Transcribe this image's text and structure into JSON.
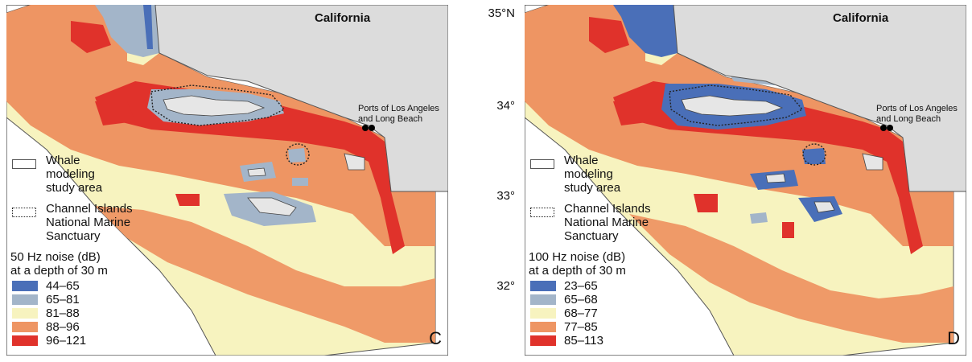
{
  "panels": [
    {
      "id": "C",
      "letter": "C",
      "state_label": "California",
      "ports_label_line1": "Ports of Los Angeles",
      "ports_label_line2": "and Long Beach",
      "legend_study_area_1": "Whale",
      "legend_study_area_2": "modeling",
      "legend_study_area_3": "study area",
      "legend_sanctuary_1": "Channel Islands",
      "legend_sanctuary_2": "National Marine",
      "legend_sanctuary_3": "Sanctuary",
      "noise_title_1": "50 Hz noise (dB)",
      "noise_title_2": "at a depth of 30 m",
      "classes": [
        {
          "label": "44–65",
          "color": "#4a6fb8"
        },
        {
          "label": "65–81",
          "color": "#a3b5c9"
        },
        {
          "label": "81–88",
          "color": "#f7f3bf"
        },
        {
          "label": "88–96",
          "color": "#ee9563"
        },
        {
          "label": "96–121",
          "color": "#e0322b"
        }
      ]
    },
    {
      "id": "D",
      "letter": "D",
      "state_label": "California",
      "ports_label_line1": "Ports of Los Angeles",
      "ports_label_line2": "and Long Beach",
      "legend_study_area_1": "Whale",
      "legend_study_area_2": "modeling",
      "legend_study_area_3": "study area",
      "legend_sanctuary_1": "Channel Islands",
      "legend_sanctuary_2": "National Marine",
      "legend_sanctuary_3": "Sanctuary",
      "noise_title_1": "100 Hz noise (dB)",
      "noise_title_2": "at a depth of 30 m",
      "classes": [
        {
          "label": "23–65",
          "color": "#4a6fb8"
        },
        {
          "label": "65–68",
          "color": "#a3b5c9"
        },
        {
          "label": "68–77",
          "color": "#f7f3bf"
        },
        {
          "label": "77–85",
          "color": "#ee9563"
        },
        {
          "label": "85–113",
          "color": "#e0322b"
        }
      ]
    }
  ],
  "latitude_labels": [
    "35°N",
    "34°",
    "33°",
    "32°"
  ],
  "colors": {
    "land": "#dcdcdc",
    "island": "#e6e6e6",
    "outside_water": "#ffffff"
  }
}
